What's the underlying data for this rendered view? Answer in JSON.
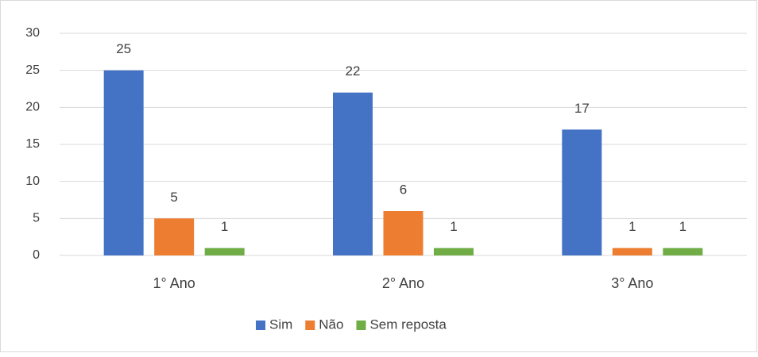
{
  "chart_data": {
    "type": "bar",
    "categories": [
      "1° Ano",
      "2° Ano",
      "3° Ano"
    ],
    "series": [
      {
        "name": "Sim",
        "color": "#4472c4",
        "values": [
          25,
          22,
          17
        ]
      },
      {
        "name": "Não",
        "color": "#ed7d31",
        "values": [
          5,
          6,
          1
        ]
      },
      {
        "name": "Sem reposta",
        "color": "#70ad47",
        "values": [
          1,
          1,
          1
        ]
      }
    ],
    "ylim": [
      0,
      30
    ],
    "yticks": [
      0,
      5,
      10,
      15,
      20,
      25,
      30
    ],
    "grid": true,
    "legend": "bottom"
  }
}
